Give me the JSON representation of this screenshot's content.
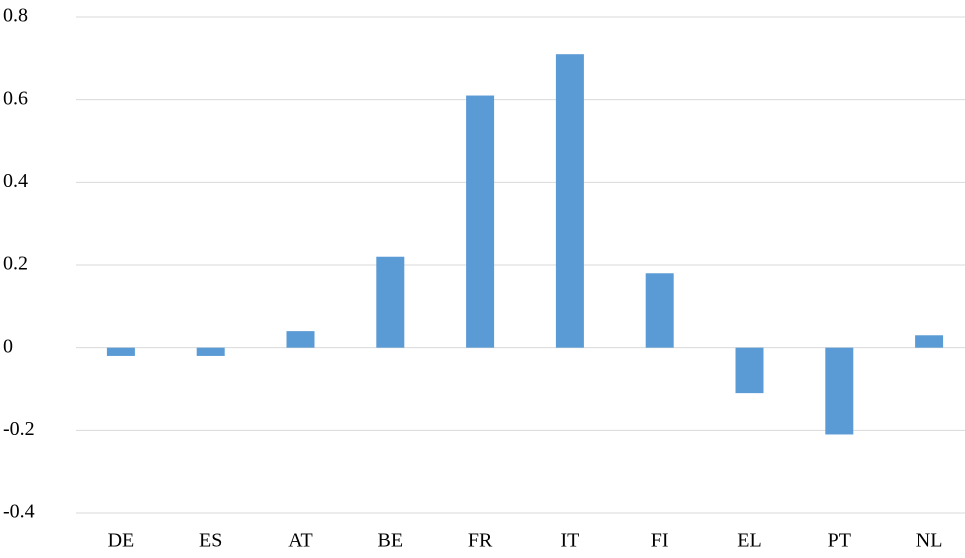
{
  "chart_data": {
    "type": "bar",
    "categories": [
      "DE",
      "ES",
      "AT",
      "BE",
      "FR",
      "IT",
      "FI",
      "EL",
      "PT",
      "NL"
    ],
    "values": [
      -0.02,
      -0.02,
      0.04,
      0.22,
      0.61,
      0.71,
      0.18,
      -0.11,
      -0.21,
      0.03
    ],
    "color": "#5b9bd5",
    "ylim": [
      -0.4,
      0.8
    ],
    "yticks": [
      -0.4,
      -0.2,
      0,
      0.2,
      0.4,
      0.6,
      0.8
    ],
    "grid": true
  }
}
